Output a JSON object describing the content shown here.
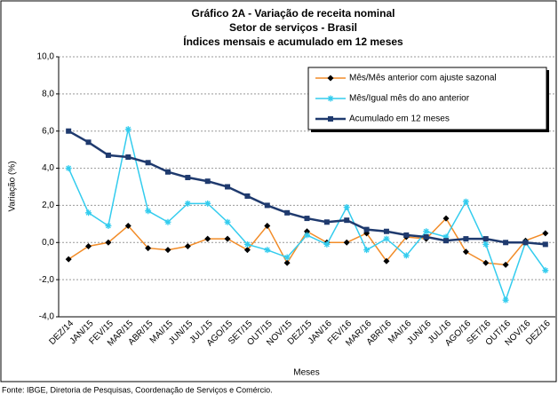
{
  "chart_data": {
    "type": "line",
    "title": "Gráfico 2A - Variação de receita nominal",
    "subtitle": "Setor de serviços - Brasil",
    "subtitle2": "Índices mensais e acumulado em 12 meses",
    "y_label": "Variação (%)",
    "x_label": "Meses",
    "source": "Fonte: IBGE, Diretoria de Pesquisas, Coordenação de Serviços e Comércio.",
    "categories": [
      "DEZ/14",
      "JAN/15",
      "FEV/15",
      "MAR/15",
      "ABR/15",
      "MAI/15",
      "JUN/15",
      "JUL/15",
      "AGO/15",
      "SET/15",
      "OUT/15",
      "NOV/15",
      "DEZ/15",
      "JAN/16",
      "FEV/16",
      "MAR/16",
      "ABR/16",
      "MAI/16",
      "JUN/16",
      "JUL/16",
      "AGO/16",
      "SET/16",
      "OUT/16",
      "NOV/16",
      "DEZ/16"
    ],
    "series": [
      {
        "name": "Mês/Mês anterior com ajuste sazonal",
        "color": "#f28c28",
        "marker": "diamond",
        "marker_color": "#000000",
        "values": [
          -0.9,
          -0.2,
          0.0,
          0.9,
          -0.3,
          -0.4,
          -0.2,
          0.2,
          0.2,
          -0.4,
          0.9,
          -1.1,
          0.6,
          0.0,
          0.0,
          0.5,
          -1.0,
          0.3,
          0.2,
          1.3,
          -0.5,
          -1.1,
          -1.2,
          0.1,
          0.5
        ]
      },
      {
        "name": "Mês/Igual mês do ano anterior",
        "color": "#33ccee",
        "marker": "star",
        "marker_color": "#33ccee",
        "values": [
          4.0,
          1.6,
          0.9,
          6.1,
          1.7,
          1.1,
          2.1,
          2.1,
          1.1,
          -0.1,
          -0.4,
          -0.8,
          0.4,
          -0.1,
          1.9,
          -0.4,
          0.2,
          -0.7,
          0.6,
          0.3,
          2.2,
          -0.1,
          -3.1,
          0.0,
          -1.5
        ]
      },
      {
        "name": "Acumulado em 12 meses",
        "color": "#1f3a6e",
        "marker": "square",
        "marker_color": "#1f3a6e",
        "values": [
          6.0,
          5.4,
          4.7,
          4.6,
          4.3,
          3.8,
          3.5,
          3.3,
          3.0,
          2.5,
          2.0,
          1.6,
          1.3,
          1.1,
          1.2,
          0.7,
          0.6,
          0.4,
          0.3,
          0.1,
          0.2,
          0.2,
          0.0,
          0.0,
          -0.1
        ]
      }
    ],
    "ylim": [
      -4,
      10
    ],
    "yticks": [
      {
        "value": -4,
        "label": "-4,0"
      },
      {
        "value": -2,
        "label": "-2,0"
      },
      {
        "value": 0,
        "label": "0,0"
      },
      {
        "value": 2,
        "label": "2,0"
      },
      {
        "value": 4,
        "label": "4,0"
      },
      {
        "value": 6,
        "label": "6,0"
      },
      {
        "value": 8,
        "label": "8,0"
      },
      {
        "value": 10,
        "label": "10,0"
      }
    ],
    "grid": true,
    "legend": "upper right"
  }
}
